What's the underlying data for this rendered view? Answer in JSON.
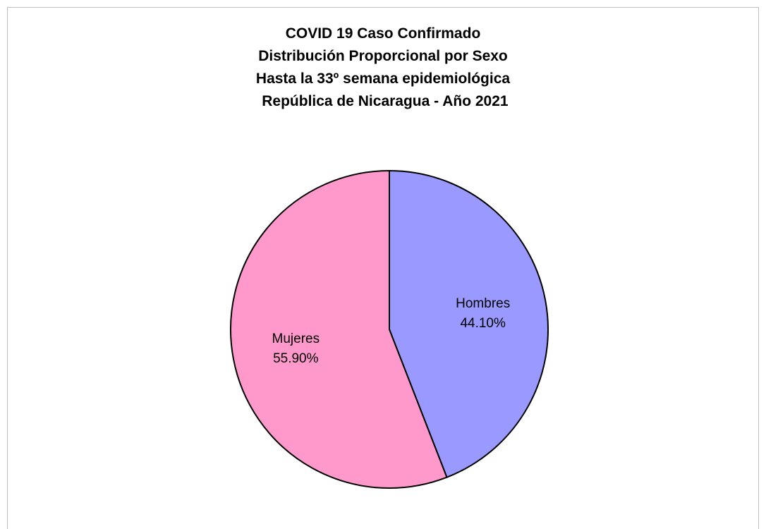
{
  "chart_data": {
    "type": "pie",
    "title_lines": [
      "COVID 19 Caso Confirmado",
      "Distribución Proporcional por Sexo",
      "Hasta la 33º semana epidemiológica",
      " República de Nicaragua - Año 2021"
    ],
    "slices": [
      {
        "name": "Hombres",
        "value": 44.1,
        "label": "44.10%",
        "color": "#9999ff"
      },
      {
        "name": "Mujeres",
        "value": 55.9,
        "label": "55.90%",
        "color": "#ff99cc"
      }
    ],
    "start_angle": "12 o'clock",
    "direction": "clockwise",
    "border_color": "#000000",
    "legend": "none"
  }
}
